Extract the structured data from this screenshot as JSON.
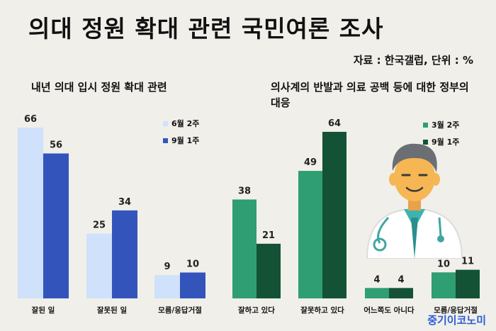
{
  "title": "의대 정원 확대 관련 국민여론 조사",
  "source": "자료 : 한국갤럽, 단위 : %",
  "brand": "중기이코노미",
  "colors": {
    "left_series1": "#cfe1fb",
    "left_series2": "#3355bb",
    "right_series1": "#2f9e72",
    "right_series2": "#145236"
  },
  "chart_data": [
    {
      "type": "bar",
      "title": "내년 의대 입시 정원 확대 관련",
      "categories": [
        "잘된 일",
        "잘못된 일",
        "모름/응답거절"
      ],
      "series": [
        {
          "name": "6월 2주",
          "values": [
            66,
            25,
            9
          ]
        },
        {
          "name": "9월 1주",
          "values": [
            56,
            34,
            10
          ]
        }
      ],
      "ylim": [
        0,
        66
      ],
      "grid": false,
      "legend": "top-right"
    },
    {
      "type": "bar",
      "title": "의사계의 반발과 의료 공백 등에 대한 정부의 대응",
      "categories": [
        "잘하고 있다",
        "잘못하고 있다",
        "어느쪽도 아니다",
        "모름/응답거절"
      ],
      "series": [
        {
          "name": "3월 2주",
          "values": [
            38,
            49,
            4,
            10
          ]
        },
        {
          "name": "9월 1주",
          "values": [
            21,
            64,
            4,
            11
          ]
        }
      ],
      "ylim": [
        0,
        64
      ],
      "grid": false,
      "legend": "top-right"
    }
  ]
}
